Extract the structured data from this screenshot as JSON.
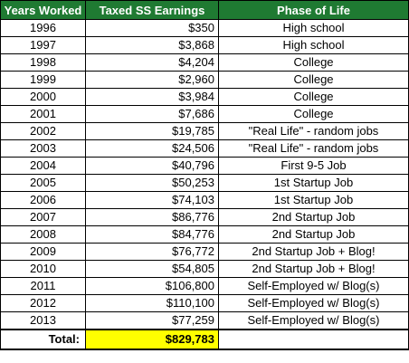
{
  "table": {
    "headers": {
      "years": "Years Worked",
      "earnings": "Taxed SS Earnings",
      "phase": "Phase of Life"
    },
    "rows": [
      {
        "year": "1996",
        "earnings": "$350",
        "phase": "High school"
      },
      {
        "year": "1997",
        "earnings": "$3,868",
        "phase": "High school"
      },
      {
        "year": "1998",
        "earnings": "$4,204",
        "phase": "College"
      },
      {
        "year": "1999",
        "earnings": "$2,960",
        "phase": "College"
      },
      {
        "year": "2000",
        "earnings": "$3,984",
        "phase": "College"
      },
      {
        "year": "2001",
        "earnings": "$7,686",
        "phase": "College"
      },
      {
        "year": "2002",
        "earnings": "$19,785",
        "phase": "\"Real Life\" - random jobs"
      },
      {
        "year": "2003",
        "earnings": "$24,506",
        "phase": "\"Real Life\" - random jobs"
      },
      {
        "year": "2004",
        "earnings": "$40,796",
        "phase": "First 9-5 Job"
      },
      {
        "year": "2005",
        "earnings": "$50,253",
        "phase": "1st Startup Job"
      },
      {
        "year": "2006",
        "earnings": "$74,103",
        "phase": "1st Startup Job"
      },
      {
        "year": "2007",
        "earnings": "$86,776",
        "phase": "2nd Startup Job"
      },
      {
        "year": "2008",
        "earnings": "$84,776",
        "phase": "2nd Startup Job"
      },
      {
        "year": "2009",
        "earnings": "$76,772",
        "phase": "2nd Startup Job + Blog!"
      },
      {
        "year": "2010",
        "earnings": "$54,805",
        "phase": "2nd Startup Job + Blog!"
      },
      {
        "year": "2011",
        "earnings": "$106,800",
        "phase": "Self-Employed w/ Blog(s)"
      },
      {
        "year": "2012",
        "earnings": "$110,100",
        "phase": "Self-Employed w/ Blog(s)"
      },
      {
        "year": "2013",
        "earnings": "$77,259",
        "phase": "Self-Employed w/ Blog(s)"
      }
    ],
    "total": {
      "label": "Total:",
      "value": "$829,783"
    }
  },
  "colors": {
    "header_bg": "#1f7a32",
    "header_text": "#ffffff",
    "total_highlight": "#ffff00"
  }
}
